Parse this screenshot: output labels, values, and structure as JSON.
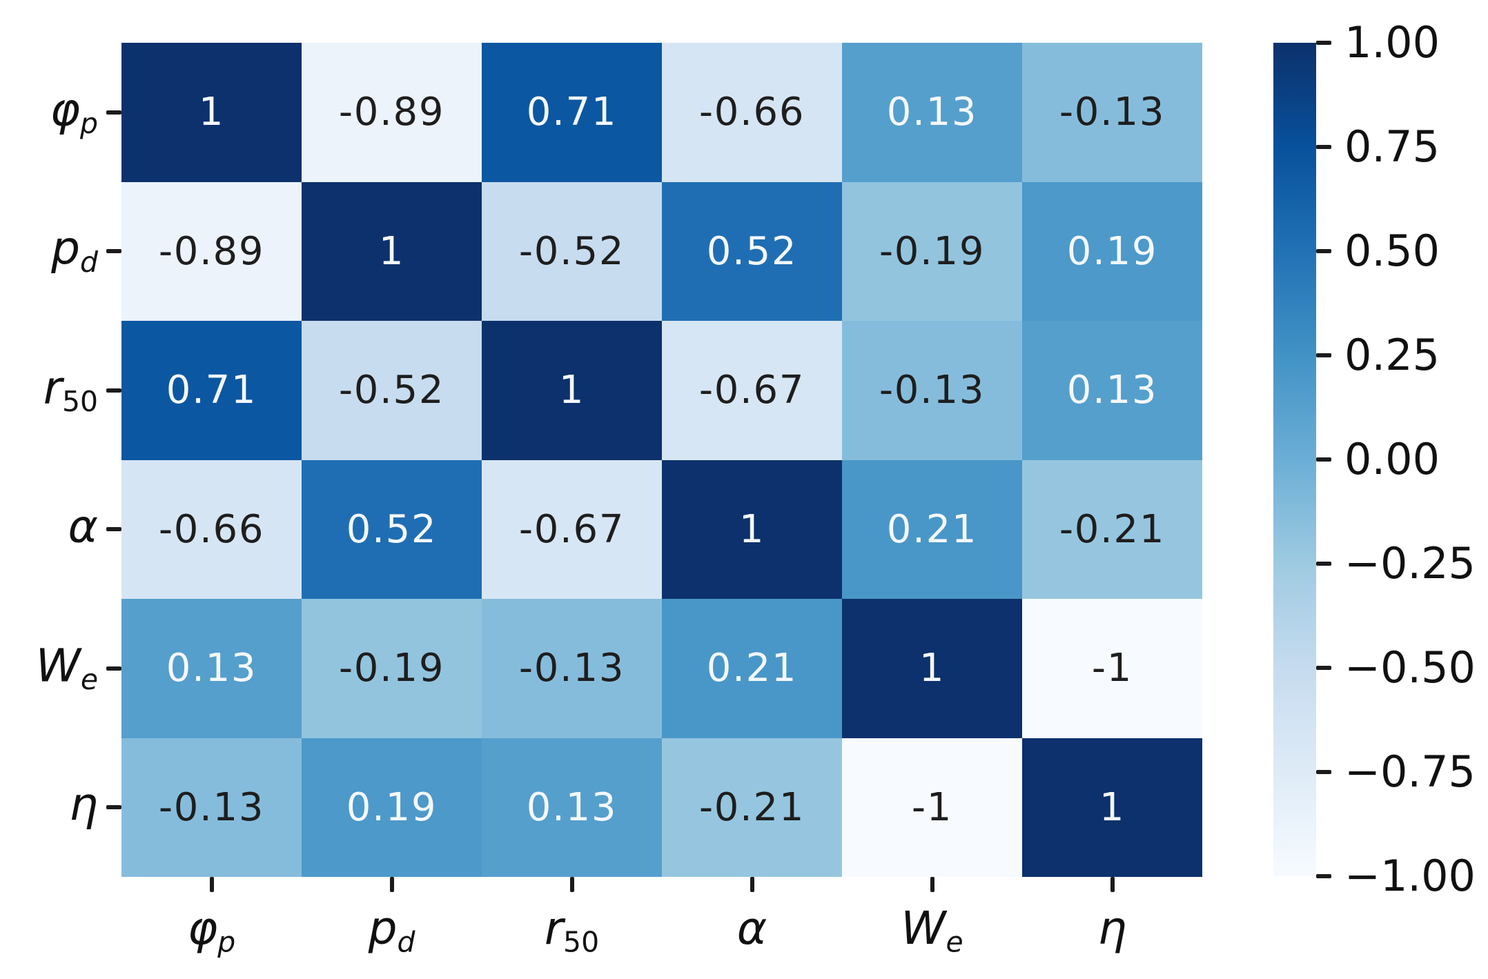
{
  "chart_data": {
    "type": "heatmap",
    "title": "",
    "description": "Correlation matrix heatmap of six parameters, Blues colormap, annotated cells, vertical colorbar on the right",
    "variables": [
      {
        "base": "φ",
        "sub": "p",
        "sub_italic": true
      },
      {
        "base": "p",
        "sub": "d",
        "sub_italic": true
      },
      {
        "base": "r",
        "sub": "50",
        "sub_italic": false
      },
      {
        "base": "α",
        "sub": "",
        "sub_italic": false
      },
      {
        "base": "W",
        "sub": "e",
        "sub_italic": true
      },
      {
        "base": "η",
        "sub": "",
        "sub_italic": false
      }
    ],
    "matrix": [
      [
        1.0,
        -0.89,
        0.71,
        -0.66,
        0.13,
        -0.13
      ],
      [
        -0.89,
        1.0,
        -0.52,
        0.52,
        -0.19,
        0.19
      ],
      [
        0.71,
        -0.52,
        1.0,
        -0.67,
        -0.13,
        0.13
      ],
      [
        -0.66,
        0.52,
        -0.67,
        1.0,
        0.21,
        -0.21
      ],
      [
        0.13,
        -0.19,
        -0.13,
        0.21,
        1.0,
        -1.0
      ],
      [
        -0.13,
        0.19,
        0.13,
        -0.21,
        -1.0,
        1.0
      ]
    ],
    "cell_labels": [
      [
        "1",
        "-0.89",
        "0.71",
        "-0.66",
        "0.13",
        "-0.13"
      ],
      [
        "-0.89",
        "1",
        "-0.52",
        "0.52",
        "-0.19",
        "0.19"
      ],
      [
        "0.71",
        "-0.52",
        "1",
        "-0.67",
        "-0.13",
        "0.13"
      ],
      [
        "-0.66",
        "0.52",
        "-0.67",
        "1",
        "0.21",
        "-0.21"
      ],
      [
        "0.13",
        "-0.19",
        "-0.13",
        "0.21",
        "1",
        "-1"
      ],
      [
        "-0.13",
        "0.19",
        "0.13",
        "-0.21",
        "-1",
        "1"
      ]
    ],
    "cell_colors": [
      [
        "#0c316c",
        "#ecf3fb",
        "#0c57a1",
        "#d6e5f4",
        "#559fcd",
        "#86bcdb"
      ],
      [
        "#ecf3fb",
        "#0c316c",
        "#c8dcef",
        "#1f6eb3",
        "#92c4de",
        "#4c99ca"
      ],
      [
        "#0c57a1",
        "#c8dcef",
        "#0c316c",
        "#d7e6f4",
        "#86bcdb",
        "#559fcd"
      ],
      [
        "#d6e5f4",
        "#1f6eb3",
        "#d7e6f4",
        "#0c316c",
        "#4997c8",
        "#96c6df"
      ],
      [
        "#559fcd",
        "#92c4de",
        "#86bcdb",
        "#4997c8",
        "#0c316c",
        "#f7fbff"
      ],
      [
        "#86bcdb",
        "#4c99ca",
        "#559fcd",
        "#96c6df",
        "#f7fbff",
        "#0c316c"
      ]
    ],
    "annotation_colors": {
      "on_dark": "#f5f8fc",
      "on_light": "#1e1e1e"
    },
    "vmin": -1,
    "vmax": 1,
    "grid": false,
    "colormap": "Blues",
    "colorbar": {
      "position": "right",
      "gradient_stops": [
        {
          "pos": 0,
          "color": "#0c316c"
        },
        {
          "pos": 12.5,
          "color": "#08519c"
        },
        {
          "pos": 25,
          "color": "#2171b5"
        },
        {
          "pos": 37.5,
          "color": "#4292c6"
        },
        {
          "pos": 50,
          "color": "#6baed6"
        },
        {
          "pos": 62.5,
          "color": "#9ecae1"
        },
        {
          "pos": 75,
          "color": "#c6dbef"
        },
        {
          "pos": 87.5,
          "color": "#deebf7"
        },
        {
          "pos": 100,
          "color": "#f7fbff"
        }
      ],
      "ticks": [
        {
          "label": "1.00",
          "value": 1.0
        },
        {
          "label": "0.75",
          "value": 0.75
        },
        {
          "label": "0.50",
          "value": 0.5
        },
        {
          "label": "0.25",
          "value": 0.25
        },
        {
          "label": "0.00",
          "value": 0.0
        },
        {
          "label": "−0.25",
          "value": -0.25
        },
        {
          "label": "−0.50",
          "value": -0.5
        },
        {
          "label": "−0.75",
          "value": -0.75
        },
        {
          "label": "−1.00",
          "value": -1.0
        }
      ]
    }
  }
}
